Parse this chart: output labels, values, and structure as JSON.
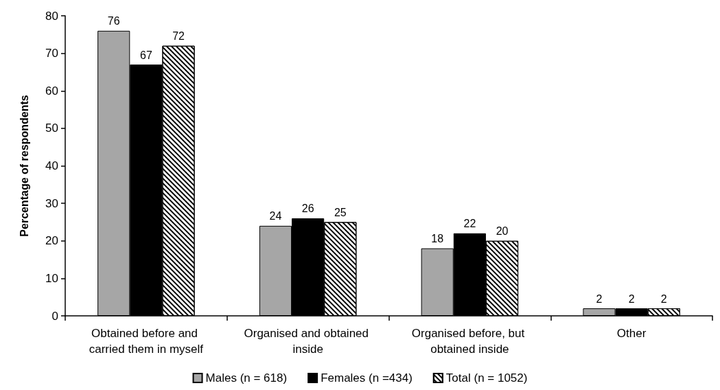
{
  "chart_data": {
    "type": "bar",
    "ylabel": "Percentage of respondents",
    "categories": [
      "Obtained before and carried them in myself",
      "Organised and obtained inside",
      "Organised before, but obtained inside",
      "Other"
    ],
    "series": [
      {
        "name": "Males (n = 618)",
        "color": "#a6a6a6",
        "values": [
          76,
          24,
          18,
          2
        ]
      },
      {
        "name": "Females (n =434)",
        "color": "#000000",
        "values": [
          67,
          26,
          22,
          2
        ]
      },
      {
        "name": "Total (n = 1052)",
        "color": "#000000",
        "values": [
          72,
          25,
          20,
          2
        ]
      }
    ],
    "ylim": [
      0,
      80
    ],
    "yticks": [
      0,
      10,
      20,
      30,
      40,
      50,
      60,
      70,
      80
    ],
    "grid": false,
    "legend": "bottom",
    "data_labels": true
  }
}
